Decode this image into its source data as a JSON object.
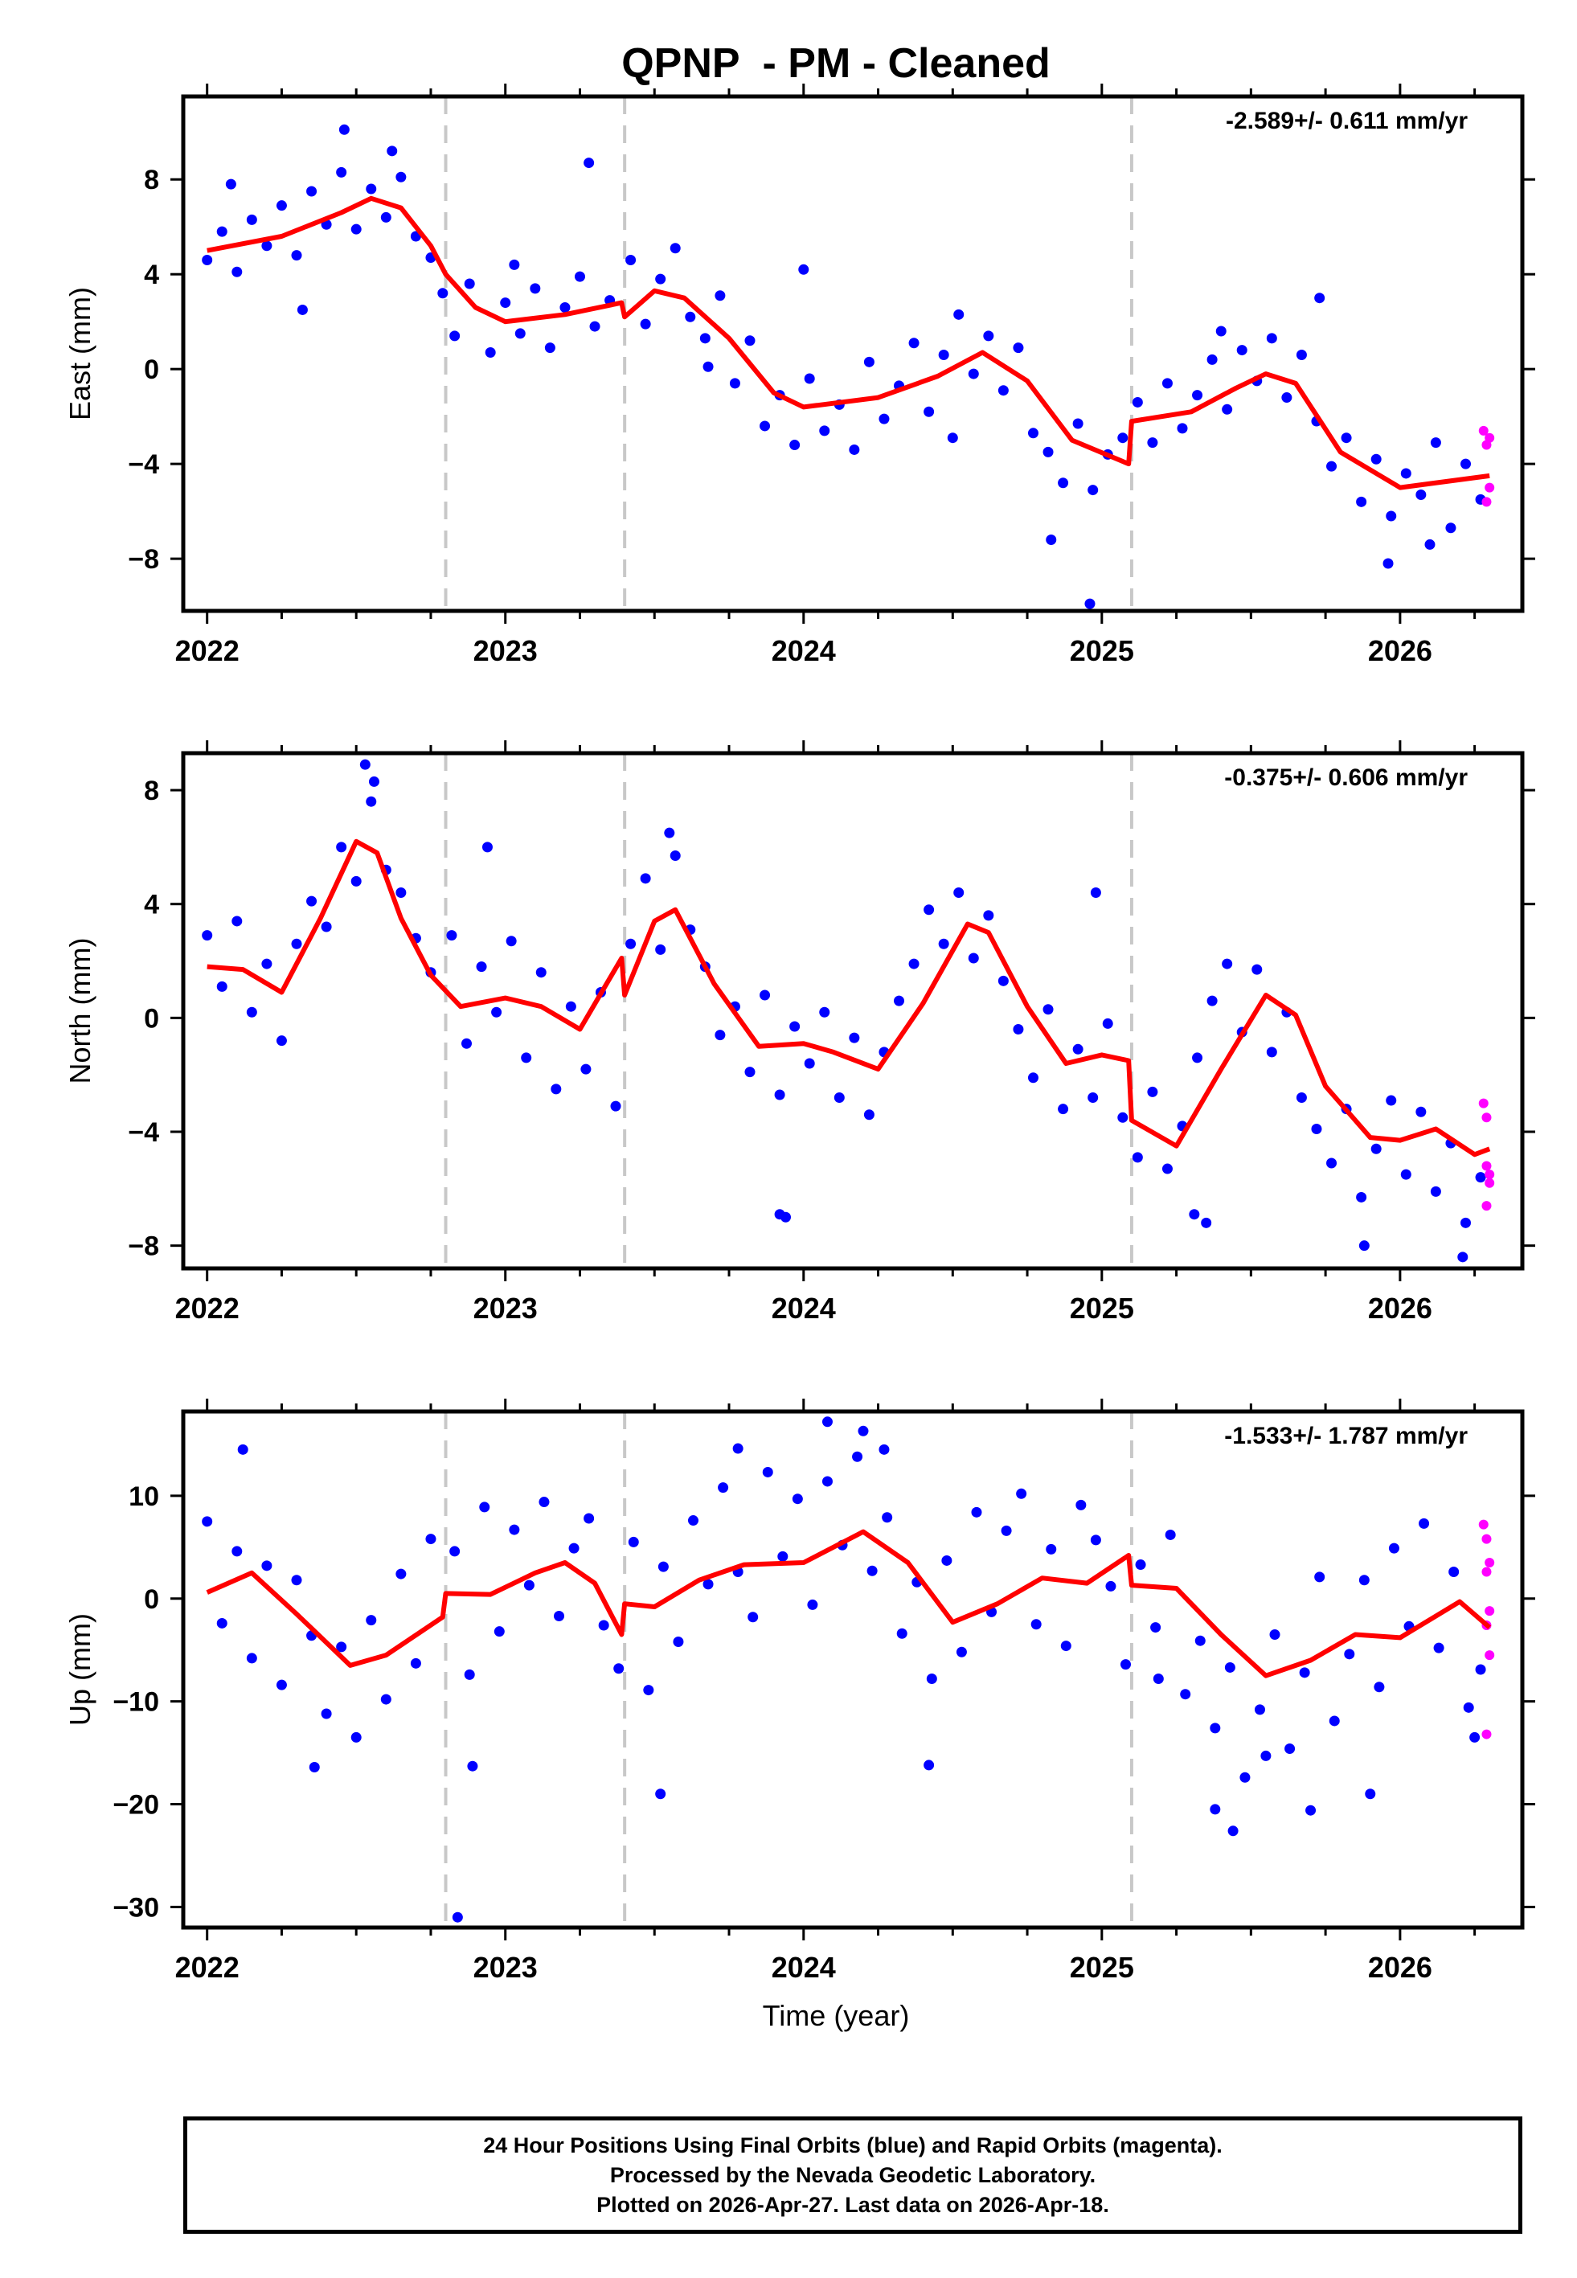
{
  "title": "QPNP  - PM - Cleaned",
  "x_axis_label": "Time (year)",
  "caption": {
    "line1": "24 Hour Positions Using Final Orbits (blue) and Rapid Orbits (magenta).",
    "line2": "Processed by the Nevada Geodetic Laboratory.",
    "line3": "Plotted on 2026-Apr-27. Last data on 2026-Apr-18."
  },
  "colors": {
    "final": "#0000ff",
    "rapid": "#ff00ff",
    "model": "#ff0000",
    "steps": "#c8c8c8"
  },
  "chart_data": [
    {
      "type": "scatter",
      "name": "east",
      "ylabel": "East (mm)",
      "rate_text": "-2.589+/- 0.611 mm/yr",
      "xlim": [
        2021.92,
        2026.41
      ],
      "ylim": [
        -10.2,
        11.5
      ],
      "yticks": [
        -8,
        -4,
        0,
        4,
        8
      ],
      "ytick_labels": [
        "−8",
        "−4",
        "0",
        "4",
        "8"
      ],
      "xticks": [
        2022,
        2023,
        2024,
        2025,
        2026
      ],
      "step_epochs": [
        2022.8,
        2023.4,
        2025.1
      ],
      "model": {
        "x": [
          2022.0,
          2022.25,
          2022.45,
          2022.55,
          2022.65,
          2022.75,
          2022.8,
          2022.9,
          2023.0,
          2023.2,
          2023.39,
          2023.4,
          2023.5,
          2023.6,
          2023.75,
          2023.9,
          2024.0,
          2024.25,
          2024.45,
          2024.6,
          2024.75,
          2024.9,
          2025.09,
          2025.1,
          2025.3,
          2025.45,
          2025.55,
          2025.65,
          2025.8,
          2026.0,
          2026.3
        ],
        "y": [
          5.0,
          5.6,
          6.6,
          7.2,
          6.8,
          5.2,
          4.0,
          2.6,
          2.0,
          2.3,
          2.8,
          2.2,
          3.3,
          3.0,
          1.3,
          -1.0,
          -1.6,
          -1.2,
          -0.3,
          0.7,
          -0.5,
          -3.0,
          -4.0,
          -2.2,
          -1.8,
          -0.8,
          -0.2,
          -0.6,
          -3.5,
          -5.0,
          -4.5
        ]
      },
      "final": {
        "x": [
          2022.0,
          2022.05,
          2022.1,
          2022.15,
          2022.2,
          2022.25,
          2022.3,
          2022.35,
          2022.4,
          2022.45,
          2022.5,
          2022.55,
          2022.6,
          2022.65,
          2022.7,
          2022.75,
          2022.79,
          2022.83,
          2022.88,
          2022.95,
          2023.0,
          2023.05,
          2023.1,
          2023.15,
          2023.2,
          2023.25,
          2023.3,
          2023.35,
          2023.42,
          2023.47,
          2023.52,
          2023.57,
          2023.62,
          2023.67,
          2023.72,
          2023.77,
          2023.82,
          2023.87,
          2023.92,
          2023.97,
          2024.02,
          2024.07,
          2024.12,
          2024.17,
          2024.22,
          2024.27,
          2024.32,
          2024.37,
          2024.42,
          2024.47,
          2024.52,
          2024.57,
          2024.62,
          2024.67,
          2024.72,
          2024.77,
          2024.82,
          2024.87,
          2024.92,
          2024.97,
          2025.02,
          2025.07,
          2025.12,
          2025.17,
          2025.22,
          2025.27,
          2025.32,
          2025.37,
          2025.42,
          2025.47,
          2025.52,
          2025.57,
          2025.62,
          2025.67,
          2025.72,
          2025.77,
          2025.82,
          2025.87,
          2025.92,
          2025.97,
          2026.02,
          2026.07,
          2026.12,
          2026.17,
          2026.22,
          2026.27,
          2022.08,
          2022.32,
          2022.46,
          2022.62,
          2023.28,
          2023.03,
          2023.68,
          2024.0,
          2024.5,
          2024.83,
          2024.96,
          2025.4,
          2025.73,
          2025.96,
          2026.1
        ],
        "y": [
          4.6,
          5.8,
          4.1,
          6.3,
          5.2,
          6.9,
          4.8,
          7.5,
          6.1,
          8.3,
          5.9,
          7.6,
          6.4,
          8.1,
          5.6,
          4.7,
          3.2,
          1.4,
          3.6,
          0.7,
          2.8,
          1.5,
          3.4,
          0.9,
          2.6,
          3.9,
          1.8,
          2.9,
          4.6,
          1.9,
          3.8,
          5.1,
          2.2,
          1.3,
          3.1,
          -0.6,
          1.2,
          -2.4,
          -1.1,
          -3.2,
          -0.4,
          -2.6,
          -1.5,
          -3.4,
          0.3,
          -2.1,
          -0.7,
          1.1,
          -1.8,
          0.6,
          2.3,
          -0.2,
          1.4,
          -0.9,
          0.9,
          -2.7,
          -3.5,
          -4.8,
          -2.3,
          -5.1,
          -3.6,
          -2.9,
          -1.4,
          -3.1,
          -0.6,
          -2.5,
          -1.1,
          0.4,
          -1.7,
          0.8,
          -0.5,
          1.3,
          -1.2,
          0.6,
          -2.2,
          -4.1,
          -2.9,
          -5.6,
          -3.8,
          -6.2,
          -4.4,
          -5.3,
          -3.1,
          -6.7,
          -4.0,
          -5.5,
          7.8,
          2.5,
          10.1,
          9.2,
          8.7,
          4.4,
          0.1,
          4.2,
          -2.9,
          -7.2,
          -9.9,
          1.6,
          3.0,
          -8.2,
          -7.4
        ]
      },
      "rapid": {
        "x": [
          2026.28,
          2026.29,
          2026.3,
          2026.29,
          2026.3
        ],
        "y": [
          -2.6,
          -3.2,
          -2.9,
          -5.6,
          -5.0
        ]
      }
    },
    {
      "type": "scatter",
      "name": "north",
      "ylabel": "North (mm)",
      "rate_text": "-0.375+/- 0.606 mm/yr",
      "xlim": [
        2021.92,
        2026.41
      ],
      "ylim": [
        -8.8,
        9.3
      ],
      "yticks": [
        -8,
        -4,
        0,
        4,
        8
      ],
      "ytick_labels": [
        "−8",
        "−4",
        "0",
        "4",
        "8"
      ],
      "xticks": [
        2022,
        2023,
        2024,
        2025,
        2026
      ],
      "step_epochs": [
        2022.8,
        2023.4,
        2025.1
      ],
      "model": {
        "x": [
          2022.0,
          2022.12,
          2022.25,
          2022.38,
          2022.5,
          2022.57,
          2022.65,
          2022.75,
          2022.85,
          2023.0,
          2023.12,
          2023.25,
          2023.39,
          2023.4,
          2023.5,
          2023.57,
          2023.7,
          2023.85,
          2024.0,
          2024.1,
          2024.25,
          2024.4,
          2024.55,
          2024.62,
          2024.75,
          2024.88,
          2025.0,
          2025.09,
          2025.1,
          2025.25,
          2025.4,
          2025.55,
          2025.65,
          2025.75,
          2025.9,
          2026.0,
          2026.12,
          2026.25,
          2026.3
        ],
        "y": [
          1.8,
          1.7,
          0.9,
          3.5,
          6.2,
          5.8,
          3.5,
          1.5,
          0.4,
          0.7,
          0.4,
          -0.4,
          2.1,
          0.8,
          3.4,
          3.8,
          1.2,
          -1.0,
          -0.9,
          -1.2,
          -1.8,
          0.5,
          3.3,
          3.0,
          0.4,
          -1.6,
          -1.3,
          -1.5,
          -3.6,
          -4.5,
          -1.8,
          0.8,
          0.1,
          -2.4,
          -4.2,
          -4.3,
          -3.9,
          -4.8,
          -4.6
        ]
      },
      "final": {
        "x": [
          2022.0,
          2022.05,
          2022.1,
          2022.15,
          2022.2,
          2022.25,
          2022.3,
          2022.35,
          2022.4,
          2022.45,
          2022.5,
          2022.55,
          2022.6,
          2022.65,
          2022.7,
          2022.75,
          2022.82,
          2022.87,
          2022.92,
          2022.97,
          2023.02,
          2023.07,
          2023.12,
          2023.17,
          2023.22,
          2023.27,
          2023.32,
          2023.37,
          2023.42,
          2023.47,
          2023.52,
          2023.57,
          2023.62,
          2023.67,
          2023.72,
          2023.77,
          2023.82,
          2023.87,
          2023.92,
          2023.97,
          2024.02,
          2024.07,
          2024.12,
          2024.17,
          2024.22,
          2024.27,
          2024.32,
          2024.37,
          2024.42,
          2024.47,
          2024.52,
          2024.57,
          2024.62,
          2024.67,
          2024.72,
          2024.77,
          2024.82,
          2024.87,
          2024.92,
          2024.97,
          2025.02,
          2025.07,
          2025.12,
          2025.17,
          2025.22,
          2025.27,
          2025.32,
          2025.37,
          2025.42,
          2025.47,
          2025.52,
          2025.57,
          2025.62,
          2025.67,
          2025.72,
          2025.77,
          2025.82,
          2025.87,
          2025.92,
          2025.97,
          2026.02,
          2026.07,
          2026.12,
          2026.17,
          2026.22,
          2026.27,
          2022.53,
          2022.56,
          2022.94,
          2023.55,
          2023.92,
          2023.94,
          2024.98,
          2025.31,
          2025.35,
          2025.88,
          2026.21
        ],
        "y": [
          2.9,
          1.1,
          3.4,
          0.2,
          1.9,
          -0.8,
          2.6,
          4.1,
          3.2,
          6.0,
          4.8,
          7.6,
          5.2,
          4.4,
          2.8,
          1.6,
          2.9,
          -0.9,
          1.8,
          0.2,
          2.7,
          -1.4,
          1.6,
          -2.5,
          0.4,
          -1.8,
          0.9,
          -3.1,
          2.6,
          4.9,
          2.4,
          5.7,
          3.1,
          1.8,
          -0.6,
          0.4,
          -1.9,
          0.8,
          -2.7,
          -0.3,
          -1.6,
          0.2,
          -2.8,
          -0.7,
          -3.4,
          -1.2,
          0.6,
          1.9,
          3.8,
          2.6,
          4.4,
          2.1,
          3.6,
          1.3,
          -0.4,
          -2.1,
          0.3,
          -3.2,
          -1.1,
          -2.8,
          -0.2,
          -3.5,
          -4.9,
          -2.6,
          -5.3,
          -3.8,
          -1.4,
          0.6,
          1.9,
          -0.5,
          1.7,
          -1.2,
          0.2,
          -2.8,
          -3.9,
          -5.1,
          -3.2,
          -6.3,
          -4.6,
          -2.9,
          -5.5,
          -3.3,
          -6.1,
          -4.4,
          -7.2,
          -5.6,
          8.9,
          8.3,
          6.0,
          6.5,
          -6.9,
          -7.0,
          4.4,
          -6.9,
          -7.2,
          -8.0,
          -8.4
        ]
      },
      "rapid": {
        "x": [
          2026.28,
          2026.29,
          2026.3,
          2026.29,
          2026.3,
          2026.29
        ],
        "y": [
          -3.0,
          -3.5,
          -5.5,
          -5.2,
          -5.8,
          -6.6
        ]
      }
    },
    {
      "type": "scatter",
      "name": "up",
      "ylabel": "Up (mm)",
      "rate_text": "-1.533+/- 1.787 mm/yr",
      "xlim": [
        2021.92,
        2026.41
      ],
      "ylim": [
        -32.0,
        18.2
      ],
      "yticks": [
        -30,
        -20,
        -10,
        0,
        10
      ],
      "ytick_labels": [
        "−30",
        "−20",
        "−10",
        "0",
        "10"
      ],
      "xticks": [
        2022,
        2023,
        2024,
        2025,
        2026
      ],
      "step_epochs": [
        2022.8,
        2023.4,
        2025.1
      ],
      "model": {
        "x": [
          2022.0,
          2022.15,
          2022.3,
          2022.48,
          2022.6,
          2022.79,
          2022.8,
          2022.95,
          2023.1,
          2023.2,
          2023.3,
          2023.39,
          2023.4,
          2023.5,
          2023.65,
          2023.8,
          2024.0,
          2024.2,
          2024.35,
          2024.5,
          2024.65,
          2024.8,
          2024.95,
          2025.09,
          2025.1,
          2025.25,
          2025.4,
          2025.55,
          2025.7,
          2025.85,
          2026.0,
          2026.2,
          2026.3
        ],
        "y": [
          0.6,
          2.5,
          -1.5,
          -6.5,
          -5.5,
          -1.8,
          0.5,
          0.4,
          2.5,
          3.5,
          1.5,
          -3.5,
          -0.5,
          -0.8,
          1.8,
          3.3,
          3.5,
          6.5,
          3.5,
          -2.3,
          -0.5,
          2.0,
          1.5,
          4.2,
          1.3,
          1.0,
          -3.5,
          -7.5,
          -6.0,
          -3.5,
          -3.8,
          -0.3,
          -2.8
        ]
      },
      "final": {
        "x": [
          2022.0,
          2022.05,
          2022.1,
          2022.15,
          2022.2,
          2022.25,
          2022.3,
          2022.35,
          2022.4,
          2022.45,
          2022.5,
          2022.55,
          2022.6,
          2022.65,
          2022.7,
          2022.75,
          2022.83,
          2022.88,
          2022.93,
          2022.98,
          2023.03,
          2023.08,
          2023.13,
          2023.18,
          2023.23,
          2023.28,
          2023.33,
          2023.38,
          2023.43,
          2023.48,
          2023.53,
          2023.58,
          2023.63,
          2023.68,
          2023.73,
          2023.78,
          2023.83,
          2023.88,
          2023.93,
          2023.98,
          2024.03,
          2024.08,
          2024.13,
          2024.18,
          2024.23,
          2024.28,
          2024.33,
          2024.38,
          2024.43,
          2024.48,
          2024.53,
          2024.58,
          2024.63,
          2024.68,
          2024.73,
          2024.78,
          2024.83,
          2024.88,
          2024.93,
          2024.98,
          2025.03,
          2025.08,
          2025.13,
          2025.18,
          2025.23,
          2025.28,
          2025.33,
          2025.38,
          2025.43,
          2025.48,
          2025.53,
          2025.58,
          2025.63,
          2025.68,
          2025.73,
          2025.78,
          2025.83,
          2025.88,
          2025.93,
          2025.98,
          2026.03,
          2026.08,
          2026.13,
          2026.18,
          2026.23,
          2026.27,
          2022.12,
          2022.36,
          2022.84,
          2022.89,
          2023.52,
          2023.78,
          2024.08,
          2024.2,
          2024.27,
          2024.42,
          2025.19,
          2025.38,
          2025.44,
          2025.55,
          2025.7,
          2025.9,
          2026.25
        ],
        "y": [
          7.5,
          -2.4,
          4.6,
          -5.8,
          3.2,
          -8.4,
          1.8,
          -3.6,
          -11.2,
          -4.7,
          -13.5,
          -2.1,
          -9.8,
          2.4,
          -6.3,
          5.8,
          4.6,
          -7.4,
          8.9,
          -3.2,
          6.7,
          1.3,
          9.4,
          -1.7,
          4.9,
          7.8,
          -2.6,
          -6.8,
          5.5,
          -8.9,
          3.1,
          -4.2,
          7.6,
          1.4,
          10.8,
          2.6,
          -1.8,
          12.3,
          4.1,
          9.7,
          -0.6,
          11.4,
          5.2,
          13.8,
          2.7,
          7.9,
          -3.4,
          1.6,
          -7.8,
          3.7,
          -5.2,
          8.4,
          -1.3,
          6.6,
          10.2,
          -2.5,
          4.8,
          -4.6,
          9.1,
          5.7,
          1.2,
          -6.4,
          3.3,
          -2.8,
          6.2,
          -9.3,
          -4.1,
          -12.6,
          -6.7,
          -17.4,
          -10.8,
          -3.5,
          -14.6,
          -7.2,
          2.1,
          -11.9,
          -5.4,
          1.8,
          -8.6,
          4.9,
          -2.7,
          7.3,
          -4.8,
          2.6,
          -10.6,
          -6.9,
          14.5,
          -16.4,
          -31.0,
          -16.3,
          -19.0,
          14.6,
          17.2,
          16.3,
          14.5,
          -16.2,
          -7.8,
          -20.5,
          -22.6,
          -15.3,
          -20.6,
          -19.0,
          -13.5
        ]
      },
      "rapid": {
        "x": [
          2026.28,
          2026.29,
          2026.3,
          2026.29,
          2026.3,
          2026.29,
          2026.3,
          2026.29
        ],
        "y": [
          7.2,
          5.8,
          3.5,
          2.6,
          -1.2,
          -2.6,
          -5.5,
          -13.2
        ]
      }
    }
  ]
}
